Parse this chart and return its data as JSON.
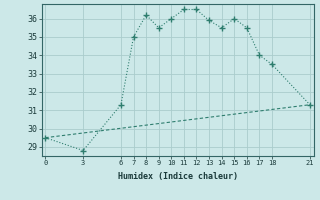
{
  "line1_x": [
    0,
    3,
    6,
    7,
    8,
    9,
    10,
    11,
    12,
    13,
    14,
    15,
    16,
    17,
    18,
    21
  ],
  "line1_y": [
    29.5,
    28.8,
    31.3,
    35.0,
    36.2,
    35.5,
    36.0,
    36.5,
    36.5,
    35.9,
    35.5,
    36.0,
    35.5,
    34.0,
    33.5,
    31.3
  ],
  "line2_x": [
    0,
    21
  ],
  "line2_y": [
    29.5,
    31.3
  ],
  "line_color": "#2e7d6e",
  "bg_color": "#cce8e8",
  "plot_bg_color": "#cce8e8",
  "grid_color": "#aacccc",
  "xlabel": "Humidex (Indice chaleur)",
  "xticks": [
    0,
    3,
    6,
    7,
    8,
    9,
    10,
    11,
    12,
    13,
    14,
    15,
    16,
    17,
    18,
    21
  ],
  "yticks": [
    29,
    30,
    31,
    32,
    33,
    34,
    35,
    36
  ],
  "xlim": [
    -0.3,
    21.3
  ],
  "ylim": [
    28.5,
    36.8
  ]
}
